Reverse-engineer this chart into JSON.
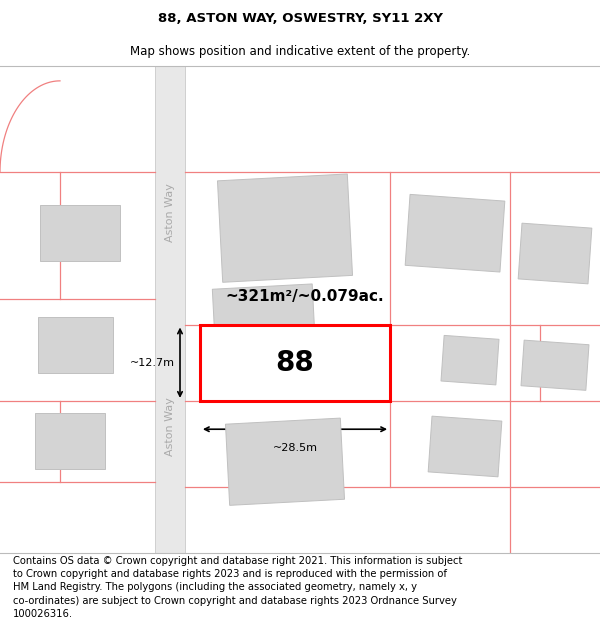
{
  "title_line1": "88, ASTON WAY, OSWESTRY, SY11 2XY",
  "title_line2": "Map shows position and indicative extent of the property.",
  "footer_text": "Contains OS data © Crown copyright and database right 2021. This information is subject\nto Crown copyright and database rights 2023 and is reproduced with the permission of\nHM Land Registry. The polygons (including the associated geometry, namely x, y\nco-ordinates) are subject to Crown copyright and database rights 2023 Ordnance Survey\n100026316.",
  "area_label": "~321m²/~0.079ac.",
  "number_label": "88",
  "width_label": "~28.5m",
  "height_label": "~12.7m",
  "street_label_upper": "Aston Way",
  "street_label_lower": "Aston Way",
  "boundary_color": "#f08080",
  "road_fill": "#e8e8e8",
  "road_edge": "#d0d0d0",
  "building_fill": "#d4d4d4",
  "building_edge": "#c0c0c0",
  "map_bg": "#f0f0f0",
  "highlight_fill": "#ffffff",
  "highlight_edge": "#ff0000",
  "dim_color": "#000000",
  "title_fontsize": 9.5,
  "subtitle_fontsize": 8.5,
  "footer_fontsize": 7.2,
  "street_fontsize": 8,
  "area_fontsize": 11,
  "number_fontsize": 20,
  "dim_fontsize": 8
}
